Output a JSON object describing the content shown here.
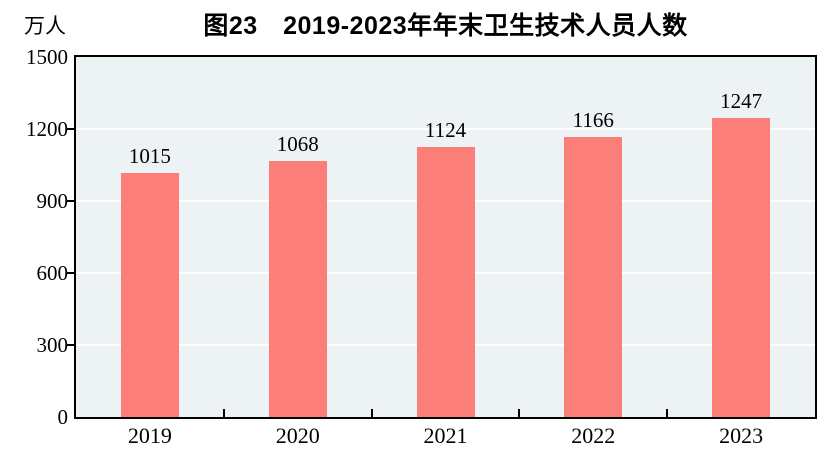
{
  "chart_data": {
    "type": "bar",
    "title": "图23　2019-2023年年末卫生技术人员人数",
    "unit_label": "万人",
    "categories": [
      "2019",
      "2020",
      "2021",
      "2022",
      "2023"
    ],
    "values": [
      1015,
      1068,
      1124,
      1166,
      1247
    ],
    "ylim": [
      0,
      1500
    ],
    "yticks": [
      0,
      300,
      600,
      900,
      1200,
      1500
    ],
    "grid": true,
    "legend": false,
    "colors": {
      "bar": "#FB7E78",
      "plot_background": "#EDF2F5",
      "gridline": "#FFFFFF",
      "axis": "#000000",
      "text": "#000000",
      "page_background": "#FFFFFF"
    }
  }
}
